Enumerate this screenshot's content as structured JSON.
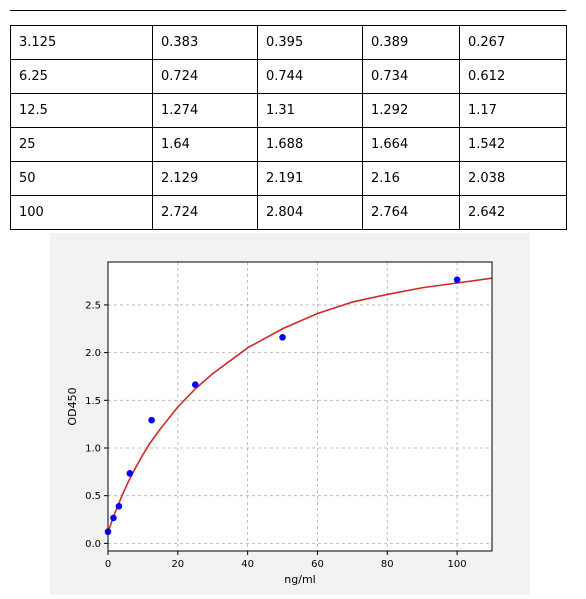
{
  "table": {
    "rows": [
      [
        "3.125",
        "0.383",
        "0.395",
        "0.389",
        "0.267"
      ],
      [
        "6.25",
        "0.724",
        "0.744",
        "0.734",
        "0.612"
      ],
      [
        "12.5",
        "1.274",
        "1.31",
        "1.292",
        "1.17"
      ],
      [
        "25",
        "1.64",
        "1.688",
        "1.664",
        "1.542"
      ],
      [
        "50",
        "2.129",
        "2.191",
        "2.16",
        "2.038"
      ],
      [
        "100",
        "2.724",
        "2.804",
        "2.764",
        "2.642"
      ]
    ]
  },
  "chart_data": {
    "type": "scatter",
    "xlabel": "ng/ml",
    "ylabel": "OD450",
    "xlim": [
      0,
      110
    ],
    "ylim": [
      -0.08,
      2.95
    ],
    "xticks": [
      0,
      20,
      40,
      60,
      80,
      100
    ],
    "yticks": [
      0.0,
      0.5,
      1.0,
      1.5,
      2.0,
      2.5
    ],
    "ytick_labels": [
      "0.0",
      "0.5",
      "1.0",
      "1.5",
      "2.0",
      "2.5"
    ],
    "grid": true,
    "points": {
      "x": [
        0,
        1.5625,
        3.125,
        6.25,
        12.5,
        25,
        50,
        100
      ],
      "y": [
        0.122,
        0.267,
        0.389,
        0.734,
        1.292,
        1.664,
        2.16,
        2.764
      ]
    },
    "fit_curve": {
      "x": [
        0,
        2,
        4,
        6,
        8,
        10,
        12,
        15,
        20,
        25,
        30,
        40,
        50,
        60,
        70,
        80,
        90,
        100,
        110
      ],
      "y": [
        0.12,
        0.32,
        0.5,
        0.66,
        0.8,
        0.93,
        1.05,
        1.2,
        1.43,
        1.62,
        1.78,
        2.05,
        2.25,
        2.41,
        2.53,
        2.61,
        2.68,
        2.73,
        2.78
      ]
    },
    "colors": {
      "points": "#0000ff",
      "curve": "#d62728",
      "grid": "#b0b0b0"
    }
  }
}
